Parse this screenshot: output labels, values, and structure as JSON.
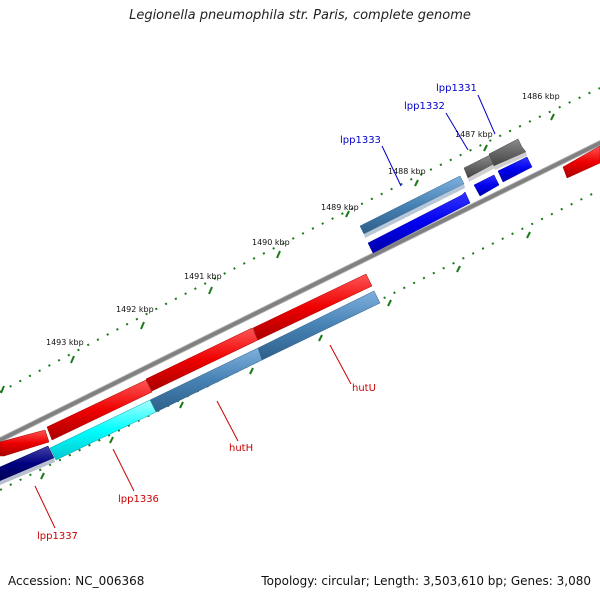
{
  "title": "Legionella pneumophila str. Paris, complete genome",
  "footer": {
    "accession": "Accession: NC_006368",
    "summary": "Topology: circular; Length: 3,503,610 bp; Genes: 3,080"
  },
  "ruler": {
    "kbp_labels": [
      "1486 kbp",
      "1487 kbp",
      "1488 kbp",
      "1489 kbp",
      "1490 kbp",
      "1491 kbp",
      "1492 kbp",
      "1493 kbp"
    ]
  },
  "genes": {
    "lpp1331": "lpp1331",
    "lpp1332": "lpp1332",
    "lpp1333": "lpp1333",
    "hutU": "hutU",
    "hutH": "hutH",
    "lpp1336": "lpp1336",
    "lpp1337": "lpp1337"
  },
  "colors": {
    "forward_gene": "#0000ee",
    "reverse_gene": "#ee0000",
    "hypothetical": "#4682b4",
    "cyan_gene": "#00ffff",
    "grey_gene": "#666666",
    "backbone": "#808080",
    "tick": "#1a7a1a",
    "forward_label": "#0000cc",
    "reverse_label": "#cc0000"
  }
}
